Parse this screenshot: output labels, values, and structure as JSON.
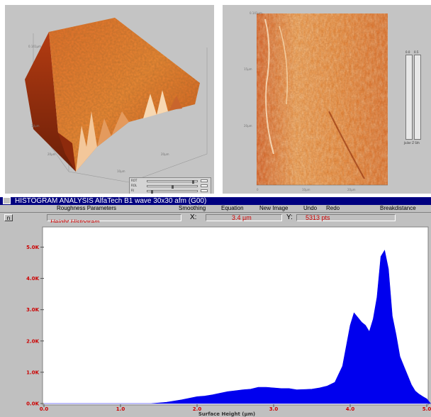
{
  "view3d": {
    "z_label": "0.141µm",
    "scale_labels": [
      "10µm",
      "20µm",
      "10µm",
      "20µm"
    ],
    "controls": {
      "rows": [
        {
          "label": "ROT",
          "value": "0",
          "level": 0.92
        },
        {
          "label": "ROL",
          "value": "0",
          "level": 0.5
        },
        {
          "label": "RI",
          "value": "0",
          "level": 0.08
        }
      ]
    }
  },
  "viewtop": {
    "top_label": "0.141µm",
    "y_labels": [
      "15µm",
      "20µm"
    ],
    "x_labels": [
      "0",
      "10µm",
      "20µm"
    ],
    "zbar_values": [
      "0.0",
      "0.5",
      "0.0",
      "0.0"
    ],
    "zbar_label": "Jailer Z Sth"
  },
  "histogram": {
    "title": "HISTOGRAM ANALYSIS   AlfaTech B1 wave 30x30 afm (G00)",
    "menu": [
      "Roughness Parameters",
      "Smoothing",
      "Equation",
      "New Image",
      "Undo",
      "Redo",
      "Breakdistance"
    ],
    "sys_button": "n",
    "chart_title": "Height Histogram",
    "x_cursor_label": "X:",
    "x_cursor_value": "3.4 µm",
    "y_cursor_label": "Y:",
    "y_cursor_value": "5313 pts",
    "colors": {
      "fill": "#0000ee",
      "ticks": "#cc0000",
      "titlebar": "#000080"
    }
  },
  "chart_data": {
    "type": "area",
    "title": "Height Histogram",
    "xlabel": "Surface Height (µm)",
    "ylabel": "",
    "x_ticks": [
      "0.0",
      "1.0",
      "2.0",
      "3.0",
      "4.0",
      "5.0"
    ],
    "y_ticks": [
      "0.0K",
      "1.0K",
      "2.0K",
      "3.0K",
      "4.0K",
      "5.0K"
    ],
    "xlim": [
      0,
      5
    ],
    "ylim": [
      0,
      5600
    ],
    "series": [
      {
        "x": [
          0.0,
          0.2,
          0.4,
          0.6,
          0.8,
          1.0,
          1.2,
          1.4,
          1.6,
          1.8,
          2.0,
          2.1,
          2.2,
          2.3,
          2.4,
          2.5,
          2.6,
          2.7,
          2.8,
          2.9,
          3.0,
          3.1,
          3.2,
          3.3,
          3.4,
          3.5,
          3.6,
          3.7,
          3.8,
          3.9,
          4.0,
          4.05,
          4.1,
          4.15,
          4.2,
          4.25,
          4.3,
          4.35,
          4.4,
          4.45,
          4.5,
          4.55,
          4.6,
          4.65,
          4.7,
          4.75,
          4.8,
          4.85,
          4.9,
          4.95,
          5.0,
          5.05
        ],
        "y": [
          0,
          0,
          0,
          0,
          0,
          0,
          0,
          0,
          40,
          120,
          220,
          240,
          280,
          330,
          380,
          410,
          440,
          460,
          520,
          520,
          500,
          480,
          480,
          440,
          450,
          460,
          500,
          560,
          680,
          1200,
          2500,
          2900,
          2750,
          2600,
          2500,
          2300,
          2700,
          3400,
          4700,
          4900,
          4300,
          2800,
          2200,
          1500,
          1200,
          900,
          600,
          400,
          300,
          220,
          150,
          0
        ]
      }
    ]
  }
}
